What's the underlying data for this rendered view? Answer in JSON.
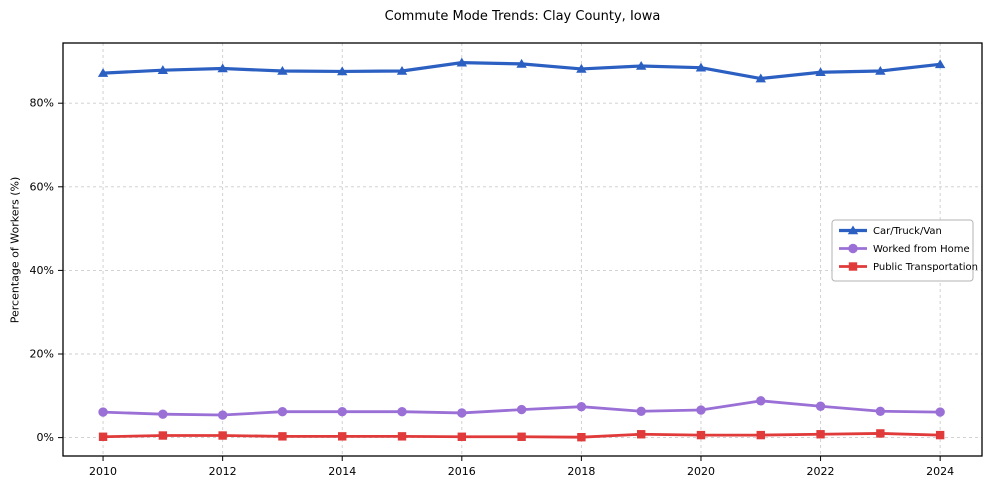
{
  "title": "Commute Mode Trends: Clay County, Iowa",
  "chart_data": {
    "type": "line",
    "title": "Commute Mode Trends: Clay County, Iowa",
    "xlabel": "",
    "ylabel": "Percentage of Workers (%)",
    "x": [
      2010,
      2011,
      2012,
      2013,
      2014,
      2015,
      2016,
      2017,
      2018,
      2019,
      2020,
      2021,
      2022,
      2023,
      2024
    ],
    "xticks": [
      2010,
      2012,
      2014,
      2016,
      2018,
      2020,
      2022,
      2024
    ],
    "yticks": [
      0,
      20,
      40,
      60,
      80
    ],
    "ytick_labels": [
      "0%",
      "20%",
      "40%",
      "60%",
      "80%"
    ],
    "ylim": [
      -4.4,
      94.4
    ],
    "xlim": [
      2009.33,
      2024.7
    ],
    "grid": true,
    "grid_style": "dashed",
    "legend_position": "center right",
    "series": [
      {
        "name": "Car/Truck/Van",
        "color": "#2b5fc2",
        "marker": "triangle",
        "line_width": 3.2,
        "values": [
          87.2,
          87.9,
          88.3,
          87.7,
          87.6,
          87.7,
          89.7,
          89.4,
          88.2,
          88.9,
          88.5,
          85.9,
          87.4,
          87.7,
          89.3
        ]
      },
      {
        "name": "Worked from Home",
        "color": "#9b70d6",
        "marker": "circle",
        "line_width": 2.8,
        "values": [
          6.1,
          5.6,
          5.4,
          6.2,
          6.2,
          6.2,
          5.9,
          6.7,
          7.4,
          6.3,
          6.6,
          8.8,
          7.5,
          6.3,
          6.1
        ]
      },
      {
        "name": "Public Transportation",
        "color": "#e03a3a",
        "marker": "square",
        "line_width": 2.8,
        "values": [
          0.2,
          0.5,
          0.5,
          0.3,
          0.3,
          0.3,
          0.2,
          0.2,
          0.1,
          0.8,
          0.6,
          0.6,
          0.8,
          1.0,
          0.6
        ]
      }
    ]
  }
}
